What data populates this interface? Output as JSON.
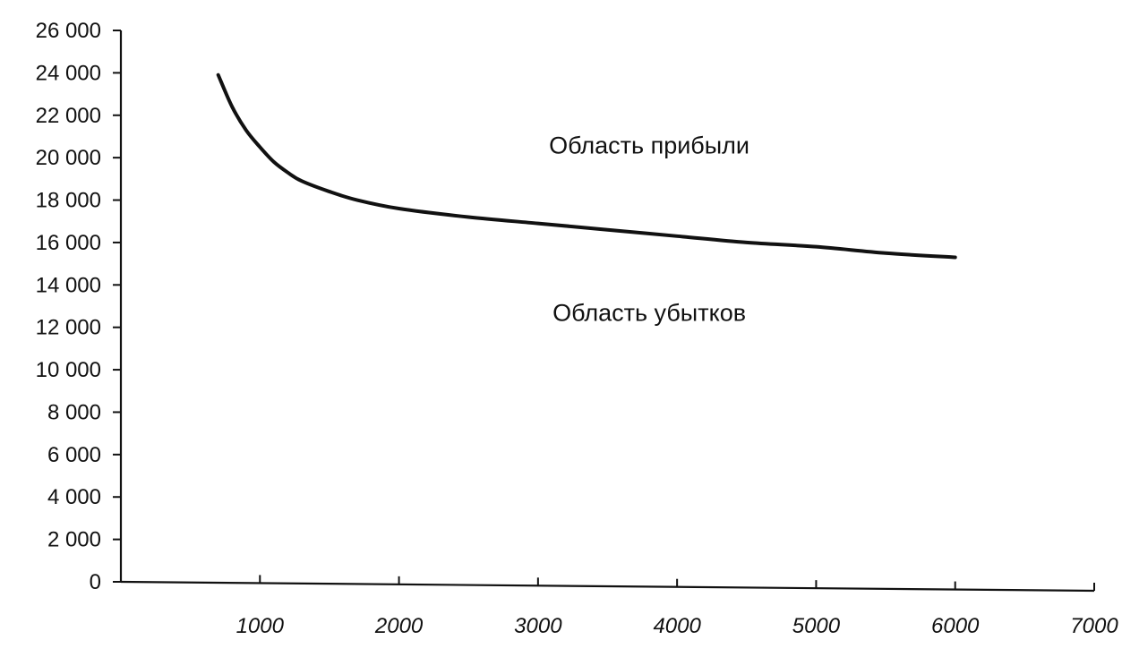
{
  "chart_data": {
    "type": "line",
    "title": "",
    "xlabel": "",
    "ylabel": "",
    "xlim": [
      0,
      7000
    ],
    "ylim": [
      0,
      26000
    ],
    "x_ticks": [
      1000,
      2000,
      3000,
      4000,
      5000,
      6000,
      7000
    ],
    "x_tick_labels": [
      "1000",
      "2000",
      "3000",
      "4000",
      "5000",
      "6000",
      "7000"
    ],
    "y_ticks": [
      0,
      2000,
      4000,
      6000,
      8000,
      10000,
      12000,
      14000,
      16000,
      18000,
      20000,
      22000,
      24000,
      26000
    ],
    "y_tick_labels": [
      "0",
      "2 000",
      "4 000",
      "6 000",
      "8 000",
      "10 000",
      "12 000",
      "14 000",
      "16 000",
      "18 000",
      "20 000",
      "22 000",
      "24 000",
      "26 000"
    ],
    "grid": false,
    "series": [
      {
        "x": [
          700,
          800,
          900,
          1000,
          1100,
          1200,
          1300,
          1500,
          1700,
          2000,
          2500,
          3000,
          3500,
          4000,
          4500,
          5000,
          5500,
          6000
        ],
        "values": [
          23900,
          22400,
          21300,
          20500,
          19800,
          19300,
          18900,
          18400,
          18000,
          17600,
          17200,
          16900,
          16600,
          16300,
          16000,
          15800,
          15500,
          15300
        ]
      }
    ],
    "annotations": [
      {
        "text": "Область прибыли",
        "x": 3800,
        "y": 20200
      },
      {
        "text": "Область убытков",
        "x": 3800,
        "y": 12300
      }
    ]
  }
}
